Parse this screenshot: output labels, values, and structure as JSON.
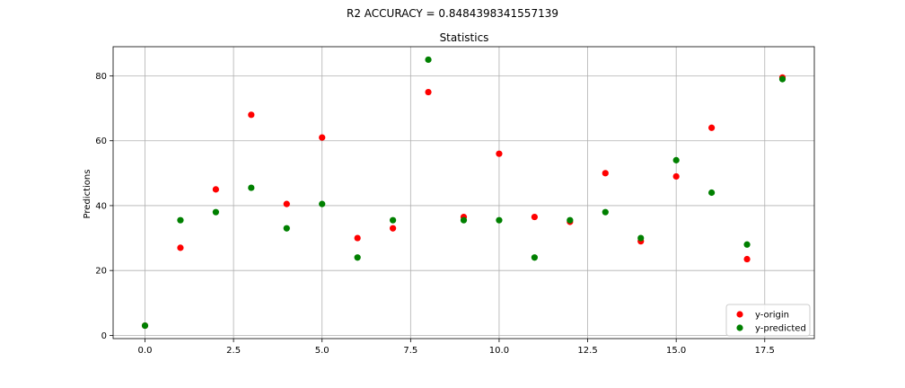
{
  "suptitle": "R2 ACCURACY = 0.8484398341557139",
  "chart_data": {
    "type": "scatter",
    "title": "Statistics",
    "xlabel": "",
    "ylabel": "Predictions",
    "xlim": [
      -0.9,
      18.9
    ],
    "ylim": [
      -1,
      89
    ],
    "grid": true,
    "legend_position": "lower-right",
    "x_ticks": [
      0.0,
      2.5,
      5.0,
      7.5,
      10.0,
      12.5,
      15.0,
      17.5
    ],
    "x_tick_labels": [
      "0.0",
      "2.5",
      "5.0",
      "7.5",
      "10.0",
      "12.5",
      "15.0",
      "17.5"
    ],
    "y_ticks": [
      0,
      20,
      40,
      60,
      80
    ],
    "y_tick_labels": [
      "0",
      "20",
      "40",
      "60",
      "80"
    ],
    "x": [
      0,
      1,
      2,
      3,
      4,
      5,
      6,
      7,
      8,
      9,
      10,
      11,
      12,
      13,
      14,
      15,
      16,
      17,
      18
    ],
    "series": [
      {
        "name": "y-origin",
        "color": "#ff0000",
        "values": [
          3,
          27,
          45,
          68,
          40.5,
          61,
          30,
          33,
          75,
          36.5,
          56,
          36.5,
          35,
          50,
          29,
          49,
          64,
          23.5,
          79.5
        ]
      },
      {
        "name": "y-predicted",
        "color": "#008000",
        "values": [
          3,
          35.5,
          38,
          45.5,
          33,
          40.5,
          24,
          35.5,
          85,
          35.5,
          35.5,
          24,
          35.5,
          38,
          30,
          54,
          44,
          28,
          79
        ]
      }
    ]
  }
}
